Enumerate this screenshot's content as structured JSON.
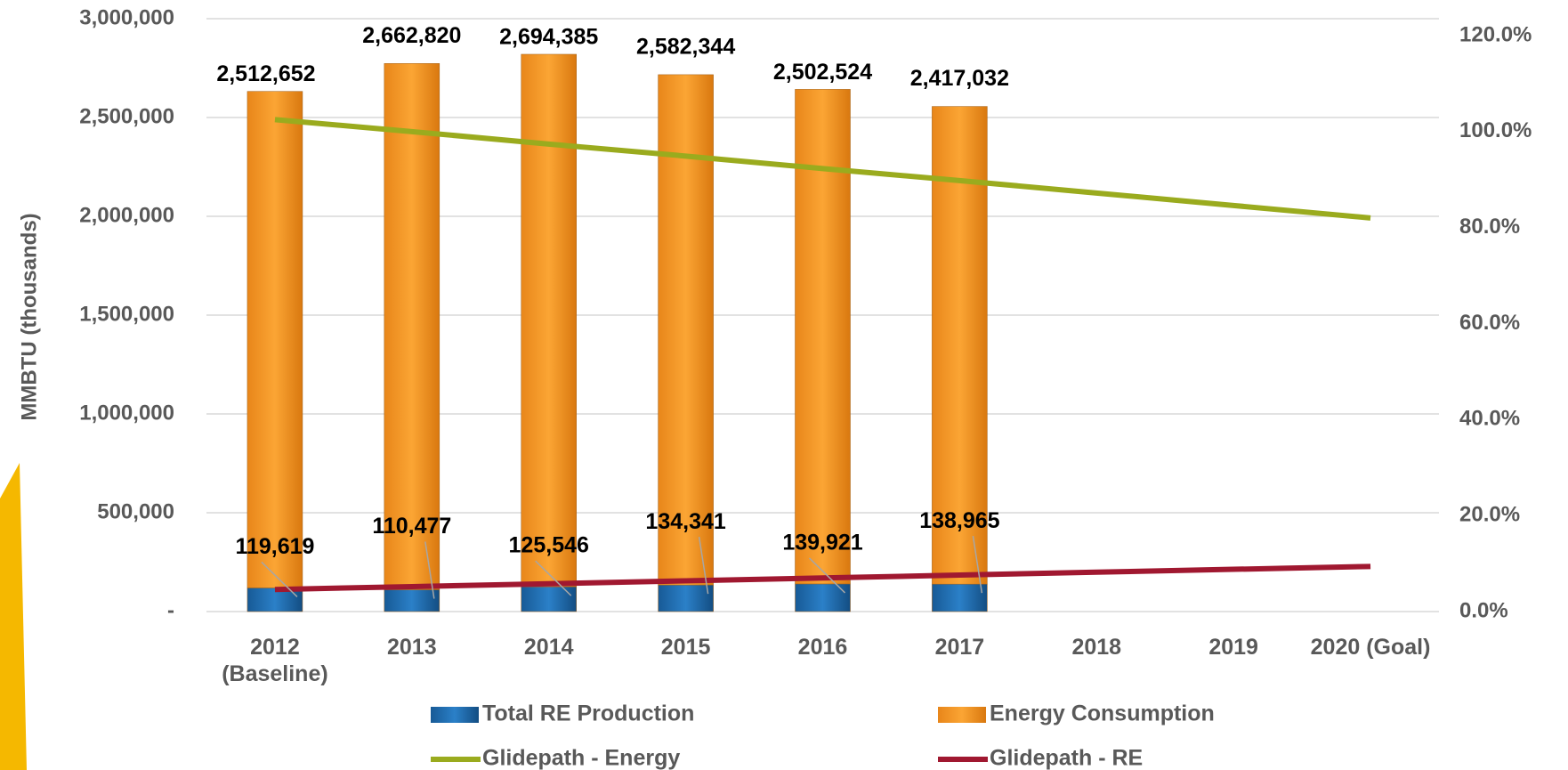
{
  "chart_data": {
    "type": "bar",
    "y_label": "MMBTU (thousands)",
    "categories": [
      "2012 (Baseline)",
      "2013",
      "2014",
      "2015",
      "2016",
      "2017",
      "2018",
      "2019",
      "2020 (Goal)"
    ],
    "series": [
      {
        "name": "Total RE Production",
        "type": "bar",
        "color": "#1f6cb0",
        "values": [
          119619,
          110477,
          125546,
          134341,
          139921,
          138965,
          null,
          null,
          null
        ],
        "value_labels": [
          "119,619",
          "110,477",
          "125,546",
          "134,341",
          "139,921",
          "138,965",
          null,
          null,
          null
        ]
      },
      {
        "name": "Energy Consumption",
        "type": "bar",
        "color": "#f79a22",
        "values": [
          2512652,
          2662820,
          2694385,
          2582344,
          2502524,
          2417032,
          null,
          null,
          null
        ],
        "value_labels": [
          "2,512,652",
          "2,662,820",
          "2,694,385",
          "2,582,344",
          "2,502,524",
          "2,417,032",
          null,
          null,
          null
        ]
      },
      {
        "name": "Glidepath - Energy",
        "type": "line",
        "axis": "y2",
        "color": "#9aab1e",
        "values": [
          102.5,
          100,
          97.4,
          94.9,
          92.3,
          89.8,
          87.2,
          84.6,
          82.0
        ]
      },
      {
        "name": "Glidepath - RE",
        "type": "line",
        "axis": "y2",
        "color": "#a01830",
        "values": [
          4.6,
          5.2,
          5.8,
          6.4,
          7.0,
          7.6,
          8.2,
          8.8,
          9.4
        ]
      }
    ],
    "stacked": true,
    "ylim": [
      0,
      3000000
    ],
    "yticks": [
      {
        "value": 0,
        "label": "-"
      },
      {
        "value": 500000,
        "label": "500,000"
      },
      {
        "value": 1000000,
        "label": "1,000,000"
      },
      {
        "value": 1500000,
        "label": "1,500,000"
      },
      {
        "value": 2000000,
        "label": "2,000,000"
      },
      {
        "value": 2500000,
        "label": "2,500,000"
      },
      {
        "value": 3000000,
        "label": "3,000,000"
      }
    ],
    "y2lim": [
      0,
      120
    ],
    "y2ticks": [
      {
        "value": 0,
        "label": "0.0%"
      },
      {
        "value": 20,
        "label": "20.0%"
      },
      {
        "value": 40,
        "label": "40.0%"
      },
      {
        "value": 60,
        "label": "60.0%"
      },
      {
        "value": 80,
        "label": "80.0%"
      },
      {
        "value": 100,
        "label": "100.0%"
      },
      {
        "value": 120,
        "label": "120.0%"
      }
    ],
    "grid": true
  }
}
